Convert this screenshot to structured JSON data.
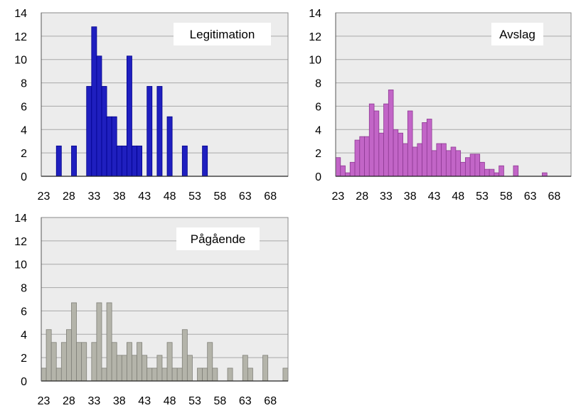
{
  "chart_data": [
    {
      "type": "bar",
      "legend": "Legitimation",
      "color": "#1f1fbf",
      "border": "#00008b",
      "legend_position": "top-right",
      "grid": true,
      "x_start": 23,
      "x_step": 1,
      "x_ticks": [
        23,
        28,
        33,
        38,
        43,
        48,
        53,
        58,
        63,
        68
      ],
      "x_tick_labels": [
        "23",
        "28",
        "33",
        "38",
        "43",
        "48",
        "53",
        "58",
        "63",
        "68"
      ],
      "ylim": [
        0,
        14
      ],
      "y_ticks": [
        0,
        2,
        4,
        6,
        8,
        10,
        12,
        14
      ],
      "y_tick_labels": [
        "0",
        "2",
        "4",
        "6",
        "8",
        "10",
        "12",
        "14"
      ],
      "values": [
        0,
        0,
        0,
        2.6,
        0,
        0,
        2.6,
        0,
        0,
        7.7,
        12.8,
        10.3,
        7.7,
        5.1,
        5.1,
        2.6,
        2.6,
        10.3,
        2.6,
        2.6,
        0,
        7.7,
        0,
        7.7,
        0,
        5.1,
        0,
        0,
        2.6,
        0,
        0,
        0,
        2.6,
        0,
        0,
        0,
        0,
        0,
        0,
        0,
        0,
        0,
        0,
        0,
        0,
        0,
        0,
        0,
        0
      ]
    },
    {
      "type": "bar",
      "legend": "Avslag",
      "color": "#c265c7",
      "border": "#8e3a93",
      "legend_position": "top-right",
      "grid": true,
      "x_start": 23,
      "x_step": 1,
      "x_ticks": [
        23,
        28,
        33,
        38,
        43,
        48,
        53,
        58,
        63,
        68
      ],
      "x_tick_labels": [
        "23",
        "28",
        "33",
        "38",
        "43",
        "48",
        "53",
        "58",
        "63",
        "68"
      ],
      "ylim": [
        0,
        14
      ],
      "y_ticks": [
        0,
        2,
        4,
        6,
        8,
        10,
        12,
        14
      ],
      "y_tick_labels": [
        "0",
        "2",
        "4",
        "6",
        "8",
        "10",
        "12",
        "14"
      ],
      "values": [
        1.6,
        0.9,
        0.3,
        1.2,
        3.1,
        3.4,
        3.4,
        6.2,
        5.6,
        3.7,
        6.2,
        7.4,
        4.0,
        3.7,
        2.8,
        5.6,
        2.5,
        2.8,
        4.6,
        4.9,
        2.2,
        2.8,
        2.8,
        2.2,
        2.5,
        2.2,
        1.2,
        1.6,
        1.9,
        1.9,
        1.2,
        0.6,
        0.6,
        0.3,
        0.9,
        0,
        0,
        0.9,
        0,
        0,
        0,
        0,
        0,
        0.3,
        0,
        0,
        0,
        0,
        0
      ]
    },
    {
      "type": "bar",
      "legend": "Pågående",
      "color": "#b4b4aa",
      "border": "#808078",
      "legend_position": "top-right",
      "grid": true,
      "x_start": 23,
      "x_step": 1,
      "x_ticks": [
        23,
        28,
        33,
        38,
        43,
        48,
        53,
        58,
        63,
        68
      ],
      "x_tick_labels": [
        "23",
        "28",
        "33",
        "38",
        "43",
        "48",
        "53",
        "58",
        "63",
        "68"
      ],
      "ylim": [
        0,
        14
      ],
      "y_ticks": [
        0,
        2,
        4,
        6,
        8,
        10,
        12,
        14
      ],
      "y_tick_labels": [
        "0",
        "2",
        "4",
        "6",
        "8",
        "10",
        "12",
        "14"
      ],
      "values": [
        1.1,
        4.4,
        3.3,
        1.1,
        3.3,
        4.4,
        6.7,
        3.3,
        3.3,
        0,
        3.3,
        6.7,
        1.1,
        6.7,
        3.3,
        2.2,
        2.2,
        3.3,
        2.2,
        3.3,
        2.2,
        1.1,
        1.1,
        2.2,
        1.1,
        3.3,
        1.1,
        1.1,
        4.4,
        2.2,
        0,
        1.1,
        1.1,
        3.3,
        1.1,
        0,
        0,
        1.1,
        0,
        0,
        2.2,
        1.1,
        0,
        0,
        2.2,
        0,
        0,
        0,
        1.1
      ]
    }
  ]
}
